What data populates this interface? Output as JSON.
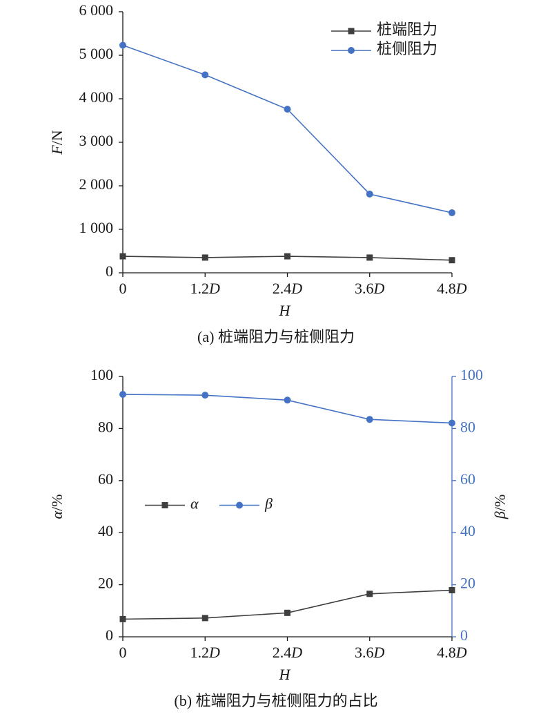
{
  "chart_data": [
    {
      "type": "line",
      "caption": "(a) 桩端阻力与桩侧阻力",
      "xlabel": "H",
      "ylabel": "F/N",
      "categories": [
        "0",
        "1.2D",
        "2.4D",
        "3.6D",
        "4.8D"
      ],
      "ylim": [
        0,
        6000
      ],
      "yticks": [
        0,
        {
          "value": 1000,
          "label": "1 000"
        },
        {
          "value": 2000,
          "label": "2 000"
        },
        {
          "value": 3000,
          "label": "3 000"
        },
        {
          "value": 4000,
          "label": "4 000"
        },
        {
          "value": 5000,
          "label": "5 000"
        },
        {
          "value": 6000,
          "label": "6 000"
        }
      ],
      "legend": "upper right",
      "series": [
        {
          "name": "桩端阻力",
          "color": "#3f3f3f",
          "marker": "square",
          "values": [
            380,
            350,
            380,
            350,
            290
          ]
        },
        {
          "name": "桩侧阻力",
          "color": "#4472c4",
          "marker": "circle",
          "values": [
            5230,
            4550,
            3760,
            1810,
            1380
          ]
        }
      ]
    },
    {
      "type": "line",
      "caption": "(b) 桩端阻力与桩侧阻力的占比",
      "xlabel": "H",
      "ylabel": "α/%",
      "y2label": "β/%",
      "categories": [
        "0",
        "1.2D",
        "2.4D",
        "3.6D",
        "4.8D"
      ],
      "ylim": [
        0,
        100
      ],
      "yticks": [
        0,
        20,
        40,
        60,
        80,
        100
      ],
      "y2lim": [
        0,
        100
      ],
      "y2ticks": [
        0,
        20,
        40,
        60,
        80,
        100
      ],
      "y2color": "#4472c4",
      "legend": "center left",
      "series": [
        {
          "name": "α",
          "color": "#3f3f3f",
          "marker": "square",
          "values": [
            6.8,
            7.2,
            9.2,
            16.5,
            17.9
          ]
        },
        {
          "name": "β",
          "color": "#4472c4",
          "marker": "circle",
          "axis": "y2",
          "values": [
            93.1,
            92.8,
            90.9,
            83.5,
            82.1
          ]
        }
      ]
    }
  ]
}
